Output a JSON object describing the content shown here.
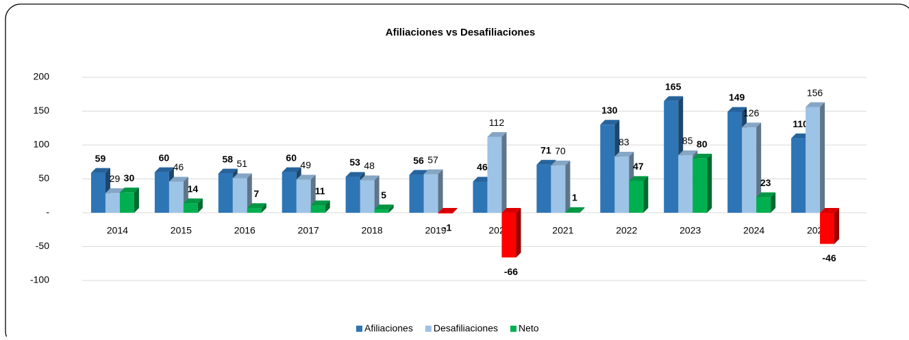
{
  "chart_data": {
    "type": "bar3d",
    "title": "Afiliaciones vs Desafiliaciones",
    "categories": [
      "2014",
      "2015",
      "2016",
      "2017",
      "2018",
      "2019",
      "2020",
      "2021",
      "2022",
      "2023",
      "2024",
      "2025"
    ],
    "series": [
      {
        "name": "Afiliaciones",
        "color": "#2e75b6",
        "bold_labels": true,
        "values": [
          59,
          60,
          58,
          60,
          53,
          56,
          46,
          71,
          130,
          165,
          149,
          110
        ]
      },
      {
        "name": "Desafiliaciones",
        "color": "#9dc3e6",
        "bold_labels": false,
        "values": [
          29,
          46,
          51,
          49,
          48,
          57,
          112,
          70,
          83,
          85,
          126,
          156
        ]
      },
      {
        "name": "Neto",
        "color": "#00b050",
        "negative_color": "#ff0000",
        "bold_labels": true,
        "values": [
          30,
          14,
          7,
          11,
          5,
          -1,
          -66,
          1,
          47,
          80,
          23,
          -46
        ]
      }
    ],
    "ylim": [
      -100,
      200
    ],
    "yticks": [
      -100,
      -50,
      {
        "value": 0,
        "label": "-"
      },
      50,
      100,
      150,
      200
    ],
    "grid": true,
    "legend": "bottom"
  }
}
